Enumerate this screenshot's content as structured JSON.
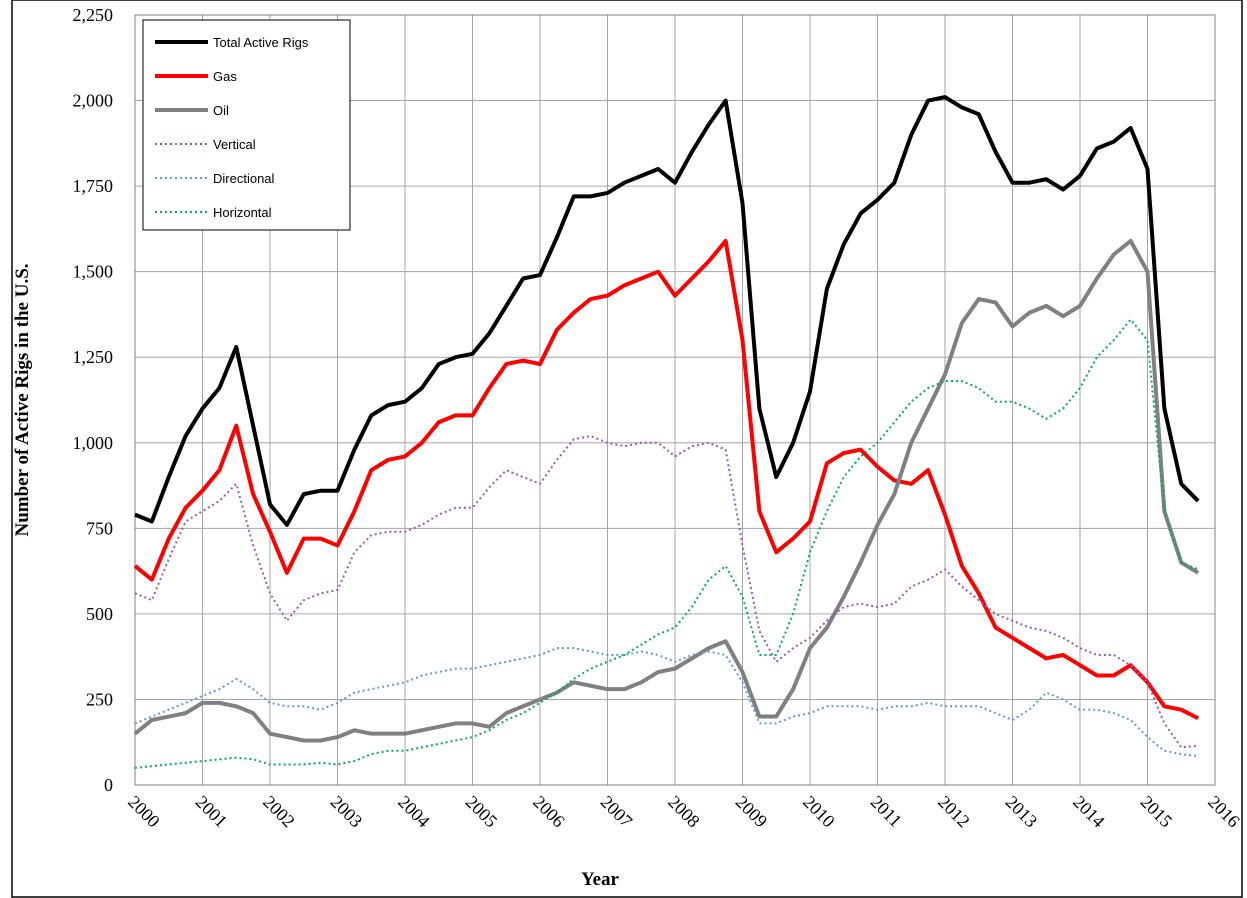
{
  "chart_data": {
    "type": "line",
    "xlabel": "Year",
    "ylabel": "Number of Active Rigs in the U.S.",
    "x": [
      2000,
      2000.25,
      2000.5,
      2000.75,
      2001,
      2001.25,
      2001.5,
      2001.75,
      2002,
      2002.25,
      2002.5,
      2002.75,
      2003,
      2003.25,
      2003.5,
      2003.75,
      2004,
      2004.25,
      2004.5,
      2004.75,
      2005,
      2005.25,
      2005.5,
      2005.75,
      2006,
      2006.25,
      2006.5,
      2006.75,
      2007,
      2007.25,
      2007.5,
      2007.75,
      2008,
      2008.25,
      2008.5,
      2008.75,
      2009,
      2009.25,
      2009.5,
      2009.75,
      2010,
      2010.25,
      2010.5,
      2010.75,
      2011,
      2011.25,
      2011.5,
      2011.75,
      2012,
      2012.25,
      2012.5,
      2012.75,
      2013,
      2013.25,
      2013.5,
      2013.75,
      2014,
      2014.25,
      2014.5,
      2014.75,
      2015,
      2015.25,
      2015.5,
      2015.75
    ],
    "series": [
      {
        "name": "Total Active Rigs",
        "color": "#000000",
        "style": "solid",
        "values": [
          790,
          770,
          900,
          1020,
          1100,
          1160,
          1280,
          1050,
          820,
          760,
          850,
          860,
          860,
          980,
          1080,
          1110,
          1120,
          1160,
          1230,
          1250,
          1260,
          1320,
          1400,
          1480,
          1490,
          1600,
          1720,
          1720,
          1730,
          1760,
          1780,
          1800,
          1760,
          1850,
          1930,
          2000,
          1700,
          1100,
          900,
          1000,
          1150,
          1450,
          1580,
          1670,
          1710,
          1760,
          1900,
          2000,
          2010,
          1980,
          1960,
          1850,
          1760,
          1760,
          1770,
          1740,
          1780,
          1860,
          1880,
          1920,
          1800,
          1100,
          880,
          830
        ]
      },
      {
        "name": "Gas",
        "color": "#ff0000",
        "style": "solid",
        "values": [
          640,
          600,
          720,
          810,
          860,
          920,
          1050,
          850,
          740,
          620,
          720,
          720,
          700,
          800,
          920,
          950,
          960,
          1000,
          1060,
          1080,
          1080,
          1160,
          1230,
          1240,
          1230,
          1330,
          1380,
          1420,
          1430,
          1460,
          1480,
          1500,
          1430,
          1480,
          1530,
          1590,
          1300,
          800,
          680,
          720,
          770,
          940,
          970,
          980,
          930,
          890,
          880,
          920,
          790,
          640,
          560,
          460,
          430,
          400,
          370,
          380,
          350,
          320,
          320,
          350,
          300,
          230,
          220,
          195
        ]
      },
      {
        "name": "Oil",
        "color": "#808080",
        "style": "solid",
        "values": [
          150,
          190,
          200,
          210,
          240,
          240,
          230,
          210,
          150,
          140,
          130,
          130,
          140,
          160,
          150,
          150,
          150,
          160,
          170,
          180,
          180,
          170,
          210,
          230,
          250,
          270,
          300,
          290,
          280,
          280,
          300,
          330,
          340,
          370,
          400,
          420,
          330,
          200,
          200,
          280,
          400,
          460,
          550,
          650,
          760,
          850,
          1000,
          1100,
          1200,
          1350,
          1420,
          1410,
          1340,
          1380,
          1400,
          1370,
          1400,
          1480,
          1550,
          1590,
          1500,
          800,
          650,
          620
        ]
      },
      {
        "name": "Vertical",
        "color": "#9b59b6",
        "style": "dotted",
        "values": [
          560,
          540,
          660,
          770,
          800,
          830,
          880,
          700,
          560,
          480,
          540,
          560,
          570,
          680,
          730,
          740,
          740,
          760,
          790,
          810,
          810,
          870,
          920,
          900,
          880,
          950,
          1010,
          1020,
          1000,
          990,
          1000,
          1000,
          960,
          990,
          1000,
          980,
          700,
          450,
          360,
          400,
          430,
          480,
          520,
          530,
          520,
          530,
          580,
          600,
          630,
          580,
          540,
          500,
          480,
          460,
          450,
          430,
          400,
          380,
          380,
          350,
          300,
          180,
          110,
          115
        ]
      },
      {
        "name": "Directional",
        "color": "#5b9bd5",
        "style": "dotted",
        "values": [
          180,
          200,
          220,
          240,
          260,
          280,
          310,
          280,
          240,
          230,
          230,
          220,
          240,
          270,
          280,
          290,
          300,
          320,
          330,
          340,
          340,
          350,
          360,
          370,
          380,
          400,
          400,
          390,
          380,
          380,
          390,
          380,
          360,
          380,
          390,
          380,
          300,
          180,
          180,
          200,
          210,
          230,
          230,
          230,
          220,
          230,
          230,
          240,
          230,
          230,
          230,
          210,
          190,
          220,
          270,
          250,
          220,
          220,
          210,
          190,
          140,
          100,
          90,
          85
        ]
      },
      {
        "name": "Horizontal",
        "color": "#00b050",
        "style": "dotted",
        "values": [
          50,
          55,
          60,
          65,
          70,
          75,
          80,
          75,
          60,
          60,
          60,
          65,
          60,
          70,
          90,
          100,
          100,
          110,
          120,
          130,
          140,
          160,
          190,
          210,
          240,
          270,
          310,
          340,
          360,
          380,
          410,
          440,
          460,
          520,
          600,
          640,
          550,
          380,
          380,
          500,
          680,
          800,
          900,
          960,
          1000,
          1060,
          1120,
          1160,
          1180,
          1180,
          1160,
          1120,
          1120,
          1100,
          1070,
          1100,
          1160,
          1250,
          1300,
          1360,
          1300,
          800,
          650,
          630
        ]
      }
    ],
    "xlim": [
      2000,
      2016
    ],
    "xticks": [
      2000,
      2001,
      2002,
      2003,
      2004,
      2005,
      2006,
      2007,
      2008,
      2009,
      2010,
      2011,
      2012,
      2013,
      2014,
      2015,
      2016
    ],
    "ylim": [
      0,
      2250
    ],
    "yticks": [
      0,
      250,
      500,
      750,
      {
        "value": 1000,
        "label": "1,000"
      },
      {
        "value": 1250,
        "label": "1,250"
      },
      {
        "value": 1500,
        "label": "1,500"
      },
      {
        "value": 1750,
        "label": "1,750"
      },
      {
        "value": 2000,
        "label": "2,000"
      },
      {
        "value": 2250,
        "label": "2,250"
      }
    ],
    "grid": true,
    "legend": "upper left"
  }
}
